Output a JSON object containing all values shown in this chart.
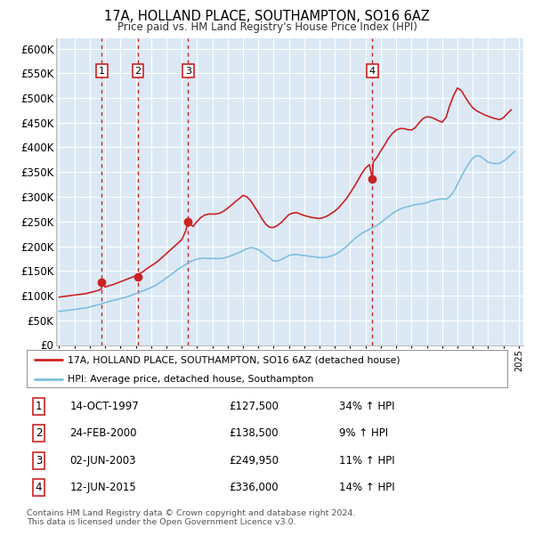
{
  "title": "17A, HOLLAND PLACE, SOUTHAMPTON, SO16 6AZ",
  "subtitle": "Price paid vs. HM Land Registry's House Price Index (HPI)",
  "background_color": "#ffffff",
  "plot_bg_color": "#dce9f5",
  "grid_color": "#ffffff",
  "ylim": [
    0,
    620000
  ],
  "ytick_step": 50000,
  "x_start_year": 1995,
  "x_end_year": 2025,
  "legend_line1": "17A, HOLLAND PLACE, SOUTHAMPTON, SO16 6AZ (detached house)",
  "legend_line2": "HPI: Average price, detached house, Southampton",
  "sale_events": [
    {
      "num": 1,
      "date": "14-OCT-1997",
      "price": "£127,500",
      "pct": "34% ↑ HPI",
      "year": 1997.79
    },
    {
      "num": 2,
      "date": "24-FEB-2000",
      "price": "£138,500",
      "pct": "9% ↑ HPI",
      "year": 2000.15
    },
    {
      "num": 3,
      "date": "02-JUN-2003",
      "price": "£249,950",
      "pct": "11% ↑ HPI",
      "year": 2003.42
    },
    {
      "num": 4,
      "date": "12-JUN-2015",
      "price": "£336,000",
      "pct": "14% ↑ HPI",
      "year": 2015.45
    }
  ],
  "sale_prices": [
    127500,
    138500,
    249950,
    336000
  ],
  "footer": "Contains HM Land Registry data © Crown copyright and database right 2024.\nThis data is licensed under the Open Government Licence v3.0.",
  "hpi_color": "#7fbfdf",
  "price_color": "#cc2222",
  "sale_dot_color": "#cc2222",
  "vline_color": "#cc2222",
  "hpi_data_years": [
    1995.0,
    1995.25,
    1995.5,
    1995.75,
    1996.0,
    1996.25,
    1996.5,
    1996.75,
    1997.0,
    1997.25,
    1997.5,
    1997.75,
    1998.0,
    1998.25,
    1998.5,
    1998.75,
    1999.0,
    1999.25,
    1999.5,
    1999.75,
    2000.0,
    2000.25,
    2000.5,
    2000.75,
    2001.0,
    2001.25,
    2001.5,
    2001.75,
    2002.0,
    2002.25,
    2002.5,
    2002.75,
    2003.0,
    2003.25,
    2003.5,
    2003.75,
    2004.0,
    2004.25,
    2004.5,
    2004.75,
    2005.0,
    2005.25,
    2005.5,
    2005.75,
    2006.0,
    2006.25,
    2006.5,
    2006.75,
    2007.0,
    2007.25,
    2007.5,
    2007.75,
    2008.0,
    2008.25,
    2008.5,
    2008.75,
    2009.0,
    2009.25,
    2009.5,
    2009.75,
    2010.0,
    2010.25,
    2010.5,
    2010.75,
    2011.0,
    2011.25,
    2011.5,
    2011.75,
    2012.0,
    2012.25,
    2012.5,
    2012.75,
    2013.0,
    2013.25,
    2013.5,
    2013.75,
    2014.0,
    2014.25,
    2014.5,
    2014.75,
    2015.0,
    2015.25,
    2015.5,
    2015.75,
    2016.0,
    2016.25,
    2016.5,
    2016.75,
    2017.0,
    2017.25,
    2017.5,
    2017.75,
    2018.0,
    2018.25,
    2018.5,
    2018.75,
    2019.0,
    2019.25,
    2019.5,
    2019.75,
    2020.0,
    2020.25,
    2020.5,
    2020.75,
    2021.0,
    2021.25,
    2021.5,
    2021.75,
    2022.0,
    2022.25,
    2022.5,
    2022.75,
    2023.0,
    2023.25,
    2023.5,
    2023.75,
    2024.0,
    2024.25,
    2024.5,
    2024.75
  ],
  "hpi_data_values": [
    68000,
    69000,
    70000,
    71000,
    72000,
    73000,
    74000,
    75000,
    77000,
    79000,
    81000,
    83000,
    86000,
    88000,
    90000,
    92000,
    94000,
    96000,
    98000,
    101000,
    104000,
    107000,
    110000,
    113000,
    116000,
    120000,
    125000,
    130000,
    136000,
    141000,
    147000,
    153000,
    158000,
    163000,
    168000,
    171000,
    174000,
    175000,
    176000,
    175000,
    175000,
    175000,
    175000,
    176000,
    178000,
    181000,
    184000,
    187000,
    191000,
    195000,
    197000,
    196000,
    193000,
    188000,
    182000,
    176000,
    170000,
    170000,
    173000,
    177000,
    181000,
    183000,
    183000,
    182000,
    181000,
    180000,
    179000,
    178000,
    177000,
    177000,
    178000,
    180000,
    183000,
    187000,
    193000,
    199000,
    207000,
    214000,
    220000,
    226000,
    230000,
    234000,
    238000,
    242000,
    248000,
    254000,
    260000,
    266000,
    271000,
    275000,
    278000,
    280000,
    282000,
    284000,
    285000,
    286000,
    288000,
    291000,
    293000,
    295000,
    296000,
    295000,
    300000,
    310000,
    325000,
    340000,
    355000,
    368000,
    378000,
    383000,
    382000,
    376000,
    370000,
    368000,
    367000,
    368000,
    372000,
    378000,
    385000,
    392000
  ],
  "price_data_years": [
    1995.0,
    1995.25,
    1995.5,
    1995.75,
    1996.0,
    1996.25,
    1996.5,
    1996.75,
    1997.0,
    1997.25,
    1997.5,
    1997.75,
    1997.79,
    1998.0,
    1998.25,
    1998.5,
    1998.75,
    1999.0,
    1999.25,
    1999.5,
    1999.75,
    2000.0,
    2000.15,
    2000.25,
    2000.5,
    2000.75,
    2001.0,
    2001.25,
    2001.5,
    2001.75,
    2002.0,
    2002.25,
    2002.5,
    2002.75,
    2003.0,
    2003.25,
    2003.42,
    2003.5,
    2003.75,
    2004.0,
    2004.25,
    2004.5,
    2004.75,
    2005.0,
    2005.25,
    2005.5,
    2005.75,
    2006.0,
    2006.25,
    2006.5,
    2006.75,
    2007.0,
    2007.25,
    2007.5,
    2007.75,
    2008.0,
    2008.25,
    2008.5,
    2008.75,
    2009.0,
    2009.25,
    2009.5,
    2009.75,
    2010.0,
    2010.25,
    2010.5,
    2010.75,
    2011.0,
    2011.25,
    2011.5,
    2011.75,
    2012.0,
    2012.25,
    2012.5,
    2012.75,
    2013.0,
    2013.25,
    2013.5,
    2013.75,
    2014.0,
    2014.25,
    2014.5,
    2014.75,
    2015.0,
    2015.25,
    2015.45,
    2015.5,
    2015.75,
    2016.0,
    2016.25,
    2016.5,
    2016.75,
    2017.0,
    2017.25,
    2017.5,
    2017.75,
    2018.0,
    2018.25,
    2018.5,
    2018.75,
    2019.0,
    2019.25,
    2019.5,
    2019.75,
    2020.0,
    2020.25,
    2020.5,
    2020.75,
    2021.0,
    2021.25,
    2021.5,
    2021.75,
    2022.0,
    2022.25,
    2022.5,
    2022.75,
    2023.0,
    2023.25,
    2023.5,
    2023.75,
    2024.0,
    2024.25,
    2024.5
  ],
  "price_data_values": [
    97000,
    98000,
    99000,
    100000,
    101000,
    102000,
    103000,
    104000,
    106000,
    108000,
    110000,
    113000,
    127500,
    117000,
    120000,
    122000,
    125000,
    128000,
    131000,
    134000,
    137000,
    140000,
    138500,
    144000,
    149000,
    155000,
    160000,
    165000,
    171000,
    178000,
    185000,
    192000,
    199000,
    206000,
    213000,
    230000,
    249950,
    245000,
    240000,
    250000,
    258000,
    263000,
    265000,
    265000,
    265000,
    267000,
    271000,
    277000,
    283000,
    290000,
    296000,
    303000,
    300000,
    292000,
    280000,
    268000,
    255000,
    244000,
    238000,
    238000,
    242000,
    248000,
    256000,
    264000,
    267000,
    268000,
    265000,
    262000,
    260000,
    258000,
    257000,
    256000,
    258000,
    261000,
    266000,
    271000,
    278000,
    287000,
    296000,
    308000,
    320000,
    333000,
    347000,
    358000,
    365000,
    336000,
    370000,
    380000,
    393000,
    405000,
    418000,
    428000,
    435000,
    438000,
    438000,
    436000,
    435000,
    440000,
    450000,
    458000,
    462000,
    461000,
    458000,
    454000,
    451000,
    460000,
    485000,
    505000,
    520000,
    515000,
    502000,
    490000,
    480000,
    474000,
    470000,
    466000,
    463000,
    460000,
    458000,
    456000,
    460000,
    468000,
    476000
  ]
}
